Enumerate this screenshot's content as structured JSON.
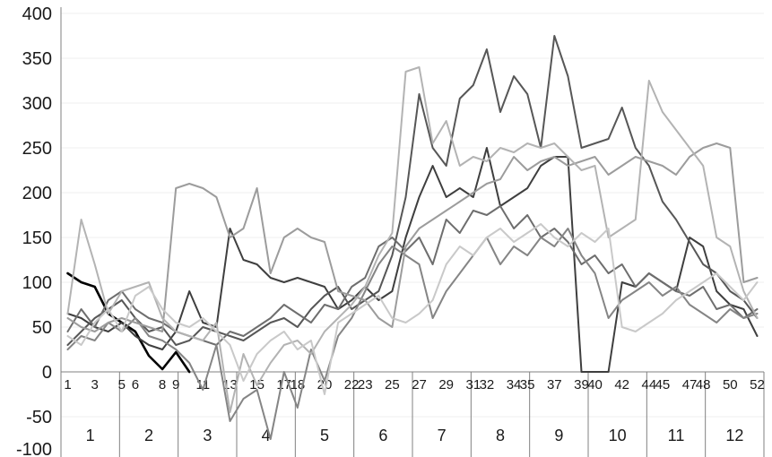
{
  "chart_data": {
    "type": "line",
    "title": "",
    "xlabel": "",
    "ylabel": "",
    "grid": true,
    "legend": "none",
    "ylim": [
      -100,
      400
    ],
    "yticks": [
      400,
      350,
      300,
      250,
      200,
      150,
      100,
      50,
      0,
      -50,
      -100
    ],
    "x_range_weeks": [
      1,
      52
    ],
    "x_tick_labels": [
      1,
      3,
      5,
      6,
      8,
      9,
      11,
      13,
      15,
      17,
      18,
      20,
      22,
      23,
      25,
      27,
      29,
      31,
      32,
      34,
      35,
      37,
      39,
      40,
      42,
      44,
      45,
      47,
      48,
      50,
      52
    ],
    "month_labels": [
      "1",
      "2",
      "3",
      "4",
      "5",
      "6",
      "7",
      "8",
      "9",
      "10",
      "11",
      "12"
    ],
    "axis_color": "#808080",
    "grid_color": "#efefef",
    "series": [
      {
        "name": "series-black-partial-year",
        "color": "#000000",
        "width": 2.6,
        "values": [
          110,
          100,
          95,
          65,
          55,
          45,
          18,
          3,
          22,
          0,
          null,
          null,
          null,
          null,
          null,
          null,
          null,
          null,
          null,
          null,
          null,
          null,
          null,
          null,
          null,
          null,
          null,
          null,
          null,
          null,
          null,
          null,
          null,
          null,
          null,
          null,
          null,
          null,
          null,
          null,
          null,
          null,
          null,
          null,
          null,
          null,
          null,
          null,
          null,
          null,
          null,
          null
        ]
      },
      {
        "name": "series-dark-gray",
        "color": "#3f3f3f",
        "width": 2,
        "values": [
          65,
          60,
          50,
          45,
          55,
          40,
          30,
          25,
          45,
          90,
          55,
          50,
          160,
          125,
          120,
          105,
          100,
          105,
          100,
          95,
          70,
          80,
          95,
          80,
          90,
          150,
          195,
          230,
          195,
          205,
          195,
          250,
          185,
          195,
          205,
          230,
          240,
          240,
          0,
          0,
          0,
          100,
          95,
          110,
          100,
          90,
          150,
          140,
          90,
          75,
          70,
          40
        ]
      },
      {
        "name": "series-charcoal",
        "color": "#575757",
        "width": 2,
        "values": [
          30,
          45,
          60,
          70,
          80,
          60,
          45,
          50,
          30,
          35,
          50,
          45,
          40,
          35,
          45,
          55,
          60,
          50,
          70,
          85,
          95,
          70,
          80,
          90,
          130,
          195,
          310,
          250,
          230,
          305,
          320,
          360,
          290,
          330,
          310,
          250,
          375,
          330,
          250,
          255,
          260,
          295,
          250,
          230,
          190,
          170,
          145,
          120,
          110,
          90,
          80,
          60
        ]
      },
      {
        "name": "series-medium-dark",
        "color": "#6e6e6e",
        "width": 2,
        "values": [
          45,
          70,
          50,
          80,
          90,
          70,
          60,
          55,
          45,
          40,
          35,
          30,
          45,
          40,
          50,
          60,
          75,
          65,
          55,
          75,
          70,
          95,
          105,
          140,
          150,
          135,
          150,
          120,
          170,
          155,
          180,
          175,
          185,
          160,
          175,
          150,
          160,
          145,
          120,
          130,
          110,
          120,
          95,
          110,
          100,
          90,
          85,
          95,
          70,
          75,
          60,
          70
        ]
      },
      {
        "name": "series-medium",
        "color": "#858585",
        "width": 2,
        "values": [
          25,
          40,
          35,
          55,
          45,
          60,
          40,
          35,
          25,
          10,
          -20,
          30,
          -55,
          -30,
          -20,
          -75,
          0,
          -40,
          25,
          -10,
          40,
          60,
          90,
          120,
          140,
          130,
          120,
          60,
          90,
          110,
          130,
          150,
          120,
          140,
          130,
          150,
          140,
          160,
          130,
          110,
          60,
          80,
          90,
          100,
          85,
          95,
          75,
          65,
          55,
          70,
          60,
          65
        ]
      },
      {
        "name": "series-gray",
        "color": "#9c9c9c",
        "width": 2,
        "values": [
          60,
          50,
          45,
          55,
          60,
          55,
          50,
          45,
          205,
          210,
          205,
          195,
          150,
          160,
          205,
          110,
          150,
          160,
          150,
          145,
          90,
          85,
          80,
          60,
          50,
          140,
          160,
          170,
          180,
          190,
          200,
          210,
          215,
          240,
          225,
          235,
          240,
          230,
          235,
          240,
          220,
          230,
          240,
          235,
          230,
          220,
          240,
          250,
          255,
          250,
          100,
          105
        ]
      },
      {
        "name": "series-light-gray",
        "color": "#b3b3b3",
        "width": 2,
        "values": [
          65,
          170,
          120,
          65,
          90,
          95,
          100,
          60,
          45,
          40,
          35,
          55,
          -45,
          20,
          -15,
          10,
          30,
          35,
          20,
          45,
          60,
          75,
          95,
          130,
          155,
          335,
          340,
          255,
          280,
          230,
          240,
          235,
          250,
          245,
          255,
          250,
          255,
          240,
          225,
          230,
          150,
          160,
          170,
          325,
          290,
          270,
          250,
          230,
          150,
          140,
          90,
          60
        ]
      },
      {
        "name": "series-lightest-gray",
        "color": "#c9c9c9",
        "width": 2,
        "values": [
          40,
          30,
          55,
          70,
          45,
          85,
          95,
          70,
          55,
          50,
          60,
          45,
          30,
          -10,
          20,
          35,
          45,
          25,
          35,
          -25,
          55,
          65,
          75,
          85,
          60,
          55,
          65,
          80,
          120,
          140,
          130,
          150,
          160,
          145,
          155,
          165,
          150,
          140,
          155,
          145,
          160,
          50,
          45,
          55,
          65,
          80,
          90,
          100,
          110,
          95,
          80,
          100
        ]
      }
    ]
  }
}
